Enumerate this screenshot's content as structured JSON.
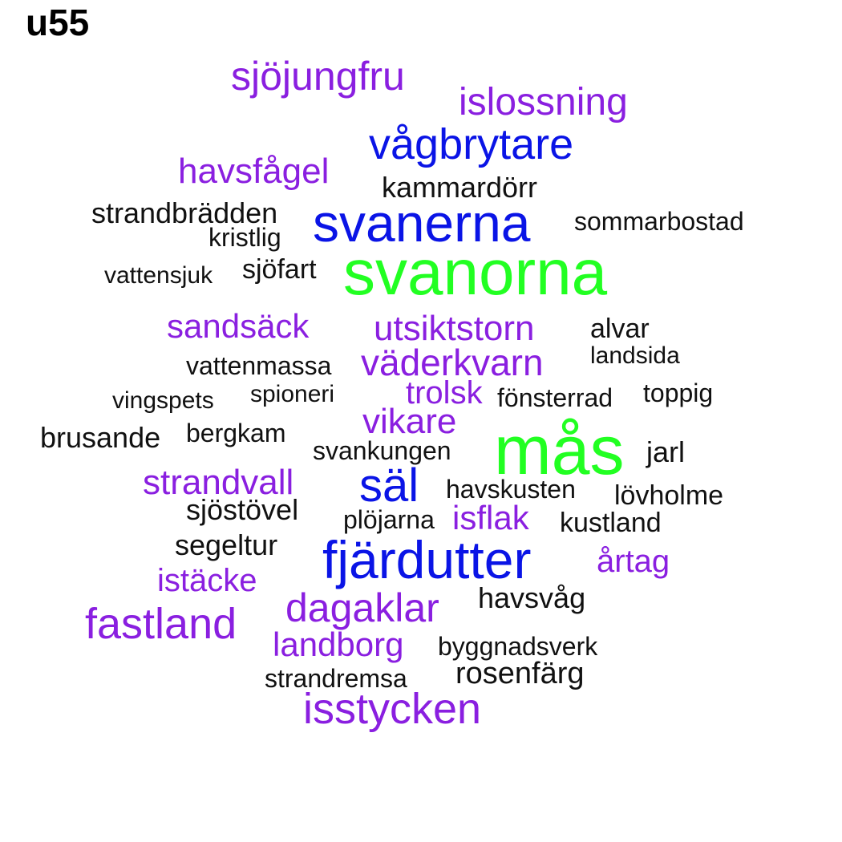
{
  "title": "u55",
  "colors": {
    "green": "#22ff22",
    "blue": "#0a14e6",
    "purple": "#8a1fe0",
    "black": "#111111"
  },
  "words": [
    {
      "text": "sjöjungfru",
      "color": "purple"
    },
    {
      "text": "islossning",
      "color": "purple"
    },
    {
      "text": "vågbrytare",
      "color": "blue"
    },
    {
      "text": "havsfågel",
      "color": "purple"
    },
    {
      "text": "kammardörr",
      "color": "black"
    },
    {
      "text": "strandbrädden",
      "color": "black"
    },
    {
      "text": "svanerna",
      "color": "blue"
    },
    {
      "text": "sommarbostad",
      "color": "black"
    },
    {
      "text": "kristlig",
      "color": "black"
    },
    {
      "text": "vattensjuk",
      "color": "black"
    },
    {
      "text": "sjöfart",
      "color": "black"
    },
    {
      "text": "svanorna",
      "color": "green"
    },
    {
      "text": "sandsäck",
      "color": "purple"
    },
    {
      "text": "utsiktstorn",
      "color": "purple"
    },
    {
      "text": "alvar",
      "color": "black"
    },
    {
      "text": "vattenmassa",
      "color": "black"
    },
    {
      "text": "väderkvarn",
      "color": "purple"
    },
    {
      "text": "landsida",
      "color": "black"
    },
    {
      "text": "vingspets",
      "color": "black"
    },
    {
      "text": "spioneri",
      "color": "black"
    },
    {
      "text": "trolsk",
      "color": "purple"
    },
    {
      "text": "fönsterrad",
      "color": "black"
    },
    {
      "text": "toppig",
      "color": "black"
    },
    {
      "text": "brusande",
      "color": "black"
    },
    {
      "text": "bergkam",
      "color": "black"
    },
    {
      "text": "vikare",
      "color": "purple"
    },
    {
      "text": "mås",
      "color": "green"
    },
    {
      "text": "svankungen",
      "color": "black"
    },
    {
      "text": "jarl",
      "color": "black"
    },
    {
      "text": "strandvall",
      "color": "purple"
    },
    {
      "text": "säl",
      "color": "blue"
    },
    {
      "text": "havskusten",
      "color": "black"
    },
    {
      "text": "lövholme",
      "color": "black"
    },
    {
      "text": "sjöstövel",
      "color": "black"
    },
    {
      "text": "plöjarna",
      "color": "black"
    },
    {
      "text": "isflak",
      "color": "purple"
    },
    {
      "text": "kustland",
      "color": "black"
    },
    {
      "text": "segeltur",
      "color": "black"
    },
    {
      "text": "fjärdutter",
      "color": "blue"
    },
    {
      "text": "årtag",
      "color": "purple"
    },
    {
      "text": "istäcke",
      "color": "purple"
    },
    {
      "text": "dagaklar",
      "color": "purple"
    },
    {
      "text": "havsvåg",
      "color": "black"
    },
    {
      "text": "fastland",
      "color": "purple"
    },
    {
      "text": "landborg",
      "color": "purple"
    },
    {
      "text": "byggnadsverk",
      "color": "black"
    },
    {
      "text": "strandremsa",
      "color": "black"
    },
    {
      "text": "rosenfärg",
      "color": "black"
    },
    {
      "text": "isstycken",
      "color": "purple"
    }
  ]
}
